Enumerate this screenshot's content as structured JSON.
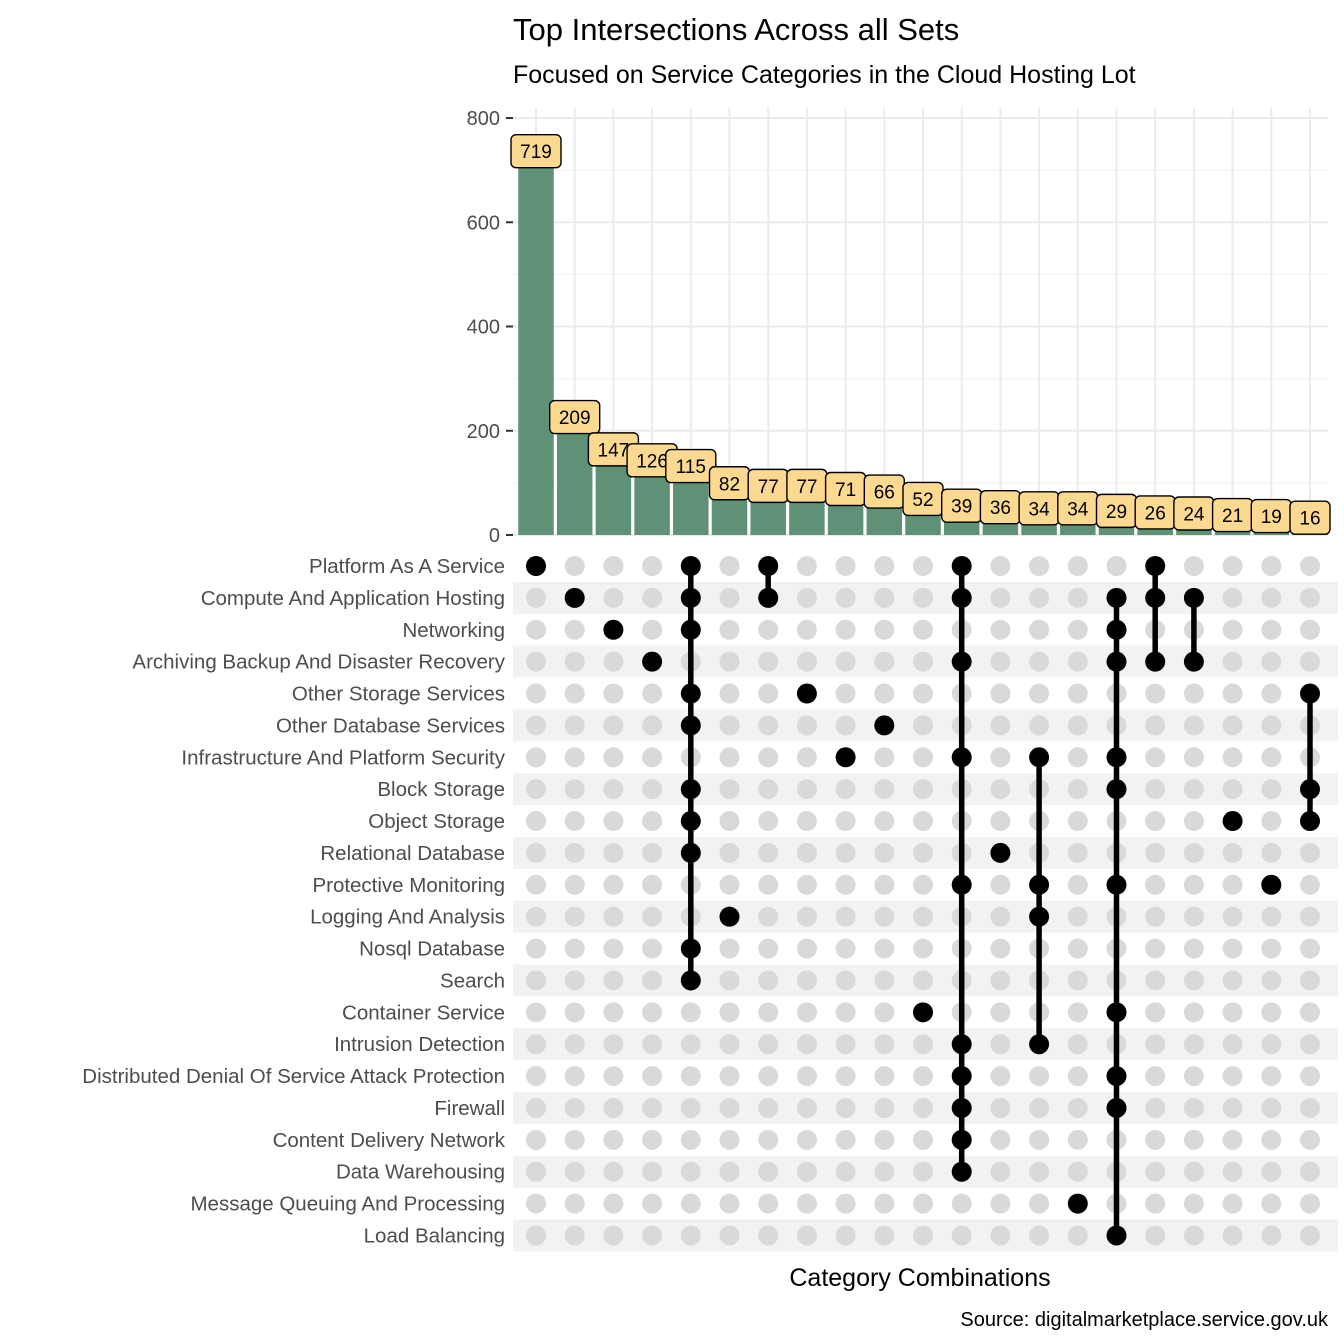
{
  "chart_data": {
    "type": "bar",
    "title": "Top Intersections Across all Sets",
    "subtitle": "Focused on Service Categories in the Cloud Hosting Lot",
    "xlabel": "Category Combinations",
    "ylabel": "",
    "caption": "Source: digitalmarketplace.service.gov.uk",
    "ylim": [
      0,
      800
    ],
    "yticks": [
      0,
      200,
      400,
      600,
      800
    ],
    "colors": {
      "bar": "#5f9176",
      "label_fill": "#fcd991",
      "dot_active": "#000000",
      "dot_inactive": "#d9d9d9",
      "row_band": "#f2f2f2",
      "grid": "#ebebeb"
    },
    "sets": [
      "Platform As A Service",
      "Compute And Application Hosting",
      "Networking",
      "Archiving Backup And Disaster Recovery",
      "Other Storage Services",
      "Other Database Services",
      "Infrastructure And Platform Security",
      "Block Storage",
      "Object Storage",
      "Relational Database",
      "Protective Monitoring",
      "Logging And Analysis",
      "Nosql Database",
      "Search",
      "Container Service",
      "Intrusion Detection",
      "Distributed Denial Of Service Attack  Protection",
      "Firewall",
      "Content Delivery Network",
      "Data Warehousing",
      "Message Queuing And Processing",
      "Load Balancing"
    ],
    "values": [
      719,
      209,
      147,
      126,
      115,
      82,
      77,
      77,
      71,
      66,
      52,
      39,
      36,
      34,
      34,
      29,
      26,
      24,
      21,
      19,
      16
    ],
    "bar_labels": [
      "719",
      "209",
      "147",
      "126",
      "115",
      "82",
      "77",
      "77",
      "71",
      "66",
      "52",
      "39",
      "36",
      "34",
      "34",
      "29",
      "26",
      "24",
      "21",
      "19",
      "16"
    ],
    "combinations": [
      [
        "Platform As A Service"
      ],
      [
        "Compute And Application Hosting"
      ],
      [
        "Networking"
      ],
      [
        "Archiving Backup And Disaster Recovery"
      ],
      [
        "Platform As A Service",
        "Compute And Application Hosting",
        "Networking",
        "Other Storage Services",
        "Other Database Services",
        "Block Storage",
        "Object Storage",
        "Relational Database",
        "Nosql Database",
        "Search"
      ],
      [
        "Logging And Analysis"
      ],
      [
        "Platform As A Service",
        "Compute And Application Hosting"
      ],
      [
        "Other Storage Services"
      ],
      [
        "Infrastructure And Platform Security"
      ],
      [
        "Other Database Services"
      ],
      [
        "Container Service"
      ],
      [
        "Platform As A Service",
        "Compute And Application Hosting",
        "Archiving Backup And Disaster Recovery",
        "Infrastructure And Platform Security",
        "Protective Monitoring",
        "Intrusion Detection",
        "Distributed Denial Of Service Attack  Protection",
        "Firewall",
        "Content Delivery Network",
        "Data Warehousing"
      ],
      [
        "Relational Database"
      ],
      [
        "Infrastructure And Platform Security",
        "Protective Monitoring",
        "Logging And Analysis",
        "Intrusion Detection"
      ],
      [
        "Message Queuing And Processing"
      ],
      [
        "Compute And Application Hosting",
        "Networking",
        "Archiving Backup And Disaster Recovery",
        "Infrastructure And Platform Security",
        "Block Storage",
        "Protective Monitoring",
        "Container Service",
        "Distributed Denial Of Service Attack  Protection",
        "Firewall",
        "Load Balancing"
      ],
      [
        "Platform As A Service",
        "Compute And Application Hosting",
        "Archiving Backup And Disaster Recovery"
      ],
      [
        "Compute And Application Hosting",
        "Archiving Backup And Disaster Recovery"
      ],
      [
        "Object Storage"
      ],
      [
        "Protective Monitoring"
      ],
      [
        "Other Storage Services",
        "Block Storage",
        "Object Storage"
      ]
    ]
  }
}
